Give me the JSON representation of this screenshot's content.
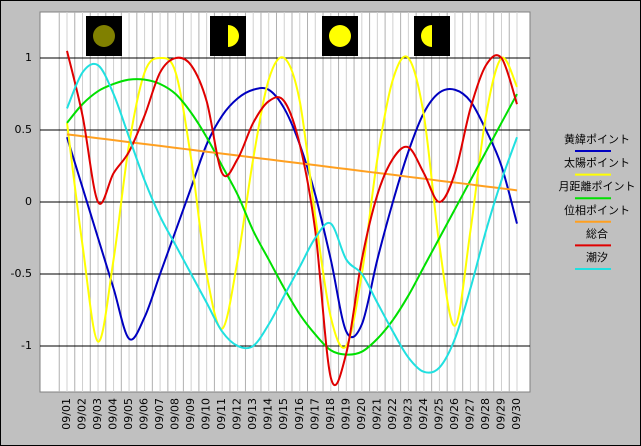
{
  "chart_data": {
    "type": "line",
    "categories": [
      "09/01",
      "09/02",
      "09/03",
      "09/04",
      "09/05",
      "09/06",
      "09/07",
      "09/08",
      "09/09",
      "09/10",
      "09/11",
      "09/12",
      "09/13",
      "09/14",
      "09/15",
      "09/16",
      "09/17",
      "09/18",
      "09/19",
      "09/20",
      "09/21",
      "09/22",
      "09/23",
      "09/24",
      "09/25",
      "09/26",
      "09/27",
      "09/28",
      "09/29",
      "09/30"
    ],
    "ylim": [
      -1.32,
      1.32
    ],
    "yticks": [
      -1,
      -0.5,
      0,
      0.5,
      1
    ],
    "grid": true,
    "legend": "right",
    "series": [
      {
        "name": "黄緯ポイント",
        "color": "#0000c0",
        "values": [
          0.45,
          0.1,
          -0.25,
          -0.6,
          -0.95,
          -0.8,
          -0.5,
          -0.2,
          0.1,
          0.4,
          0.6,
          0.72,
          0.78,
          0.78,
          0.65,
          0.4,
          0.05,
          -0.4,
          -0.9,
          -0.85,
          -0.4,
          0,
          0.35,
          0.62,
          0.76,
          0.78,
          0.7,
          0.5,
          0.25,
          -0.15
        ]
      },
      {
        "name": "太陽ポイント",
        "color": "#ffff00",
        "values": [
          0.55,
          -0.3,
          -0.97,
          -0.4,
          0.4,
          0.9,
          1.0,
          0.9,
          0.3,
          -0.5,
          -0.88,
          -0.4,
          0.3,
          0.85,
          1.0,
          0.7,
          -0.1,
          -0.8,
          -1.0,
          -0.5,
          0.3,
          0.85,
          1.0,
          0.6,
          -0.3,
          -0.86,
          -0.2,
          0.6,
          1.0,
          0.8
        ]
      },
      {
        "name": "月距離ポイント",
        "color": "#00e000",
        "values": [
          0.55,
          0.68,
          0.77,
          0.82,
          0.85,
          0.85,
          0.82,
          0.75,
          0.62,
          0.45,
          0.25,
          0.05,
          -0.2,
          -0.4,
          -0.6,
          -0.78,
          -0.92,
          -1.03,
          -1.06,
          -1.04,
          -0.95,
          -0.82,
          -0.65,
          -0.45,
          -0.25,
          -0.05,
          0.15,
          0.35,
          0.55,
          0.75
        ]
      },
      {
        "name": "位相ポイント",
        "color": "#ffa020",
        "values": [
          0.47,
          0.457,
          0.443,
          0.43,
          0.416,
          0.403,
          0.39,
          0.376,
          0.363,
          0.349,
          0.336,
          0.323,
          0.309,
          0.296,
          0.282,
          0.269,
          0.256,
          0.242,
          0.229,
          0.215,
          0.202,
          0.189,
          0.175,
          0.162,
          0.148,
          0.135,
          0.122,
          0.108,
          0.095,
          0.081
        ]
      },
      {
        "name": "総合",
        "color": "#e00000",
        "values": [
          1.05,
          0.6,
          0.0,
          0.2,
          0.35,
          0.6,
          0.9,
          1.0,
          0.95,
          0.7,
          0.2,
          0.3,
          0.55,
          0.7,
          0.7,
          0.4,
          -0.2,
          -1.22,
          -1.05,
          -0.4,
          0.05,
          0.3,
          0.38,
          0.2,
          0,
          0.2,
          0.65,
          0.95,
          1.0,
          0.68
        ]
      },
      {
        "name": "潮汐",
        "color": "#20e0e0",
        "values": [
          0.65,
          0.9,
          0.95,
          0.75,
          0.45,
          0.15,
          -0.1,
          -0.3,
          -0.5,
          -0.7,
          -0.9,
          -1.0,
          -1.0,
          -0.85,
          -0.65,
          -0.45,
          -0.25,
          -0.15,
          -0.4,
          -0.5,
          -0.7,
          -0.9,
          -1.08,
          -1.18,
          -1.15,
          -0.95,
          -0.6,
          -0.2,
          0.15,
          0.45
        ]
      }
    ]
  }
}
